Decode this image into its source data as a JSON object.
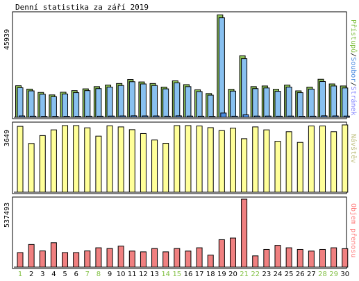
{
  "page": {
    "title": "Denní statistika za září 2019"
  },
  "panels": {
    "top": {
      "ymax_label": "45939",
      "legend_parts": [
        "Přístupů",
        "/",
        "Soubor",
        "/",
        "Stránek"
      ]
    },
    "middle": {
      "ymax_label": "3649",
      "legend": "Návštěv"
    },
    "bottom": {
      "ymax_label": "537493",
      "legend": "Objem přenosu"
    }
  },
  "colors": {
    "hits": "#8cbf59",
    "files": "#88c0f0",
    "pages": "#4a8be0",
    "visits": "#ffff99",
    "kbytes": "#f08080",
    "weekend_label": "#7fbf3f",
    "weekday_label": "#000000",
    "legend_hits": "#7fbf3f",
    "legend_files": "#4a8be0",
    "legend_pages": "#8888ff",
    "legend_sep": "#000000",
    "legend_visits": "#bfbf7f",
    "legend_kbytes": "#ff8080"
  },
  "chart_data": [
    {
      "type": "bar",
      "name": "hits-files-pages",
      "categories": [
        "1",
        "2",
        "3",
        "4",
        "5",
        "6",
        "7",
        "8",
        "9",
        "10",
        "11",
        "12",
        "13",
        "14",
        "15",
        "16",
        "17",
        "18",
        "19",
        "20",
        "21",
        "22",
        "23",
        "24",
        "25",
        "26",
        "27",
        "28",
        "29",
        "30"
      ],
      "weekend": [
        "1",
        "7",
        "8",
        "14",
        "15",
        "21",
        "22",
        "28",
        "29"
      ],
      "ylim": [
        0,
        45939
      ],
      "series": [
        {
          "name": "Přístupů",
          "values": [
            14100,
            12600,
            11100,
            10000,
            11200,
            11900,
            12700,
            13700,
            14400,
            15100,
            16900,
            15800,
            15100,
            13500,
            16300,
            14600,
            12300,
            10600,
            45800,
            12500,
            27500,
            13700,
            14000,
            12500,
            14400,
            11800,
            13500,
            17000,
            14900,
            14000
          ]
        },
        {
          "name": "Soubor",
          "values": [
            13200,
            11800,
            10300,
            9200,
            10400,
            11000,
            11900,
            12800,
            13500,
            14200,
            15900,
            14900,
            14200,
            12700,
            15400,
            13700,
            11500,
            9900,
            44500,
            11700,
            26200,
            12800,
            13100,
            11600,
            13500,
            11000,
            12600,
            16000,
            14000,
            13100
          ]
        },
        {
          "name": "Stránek",
          "values": [
            600,
            500,
            400,
            400,
            450,
            450,
            500,
            500,
            550,
            600,
            650,
            600,
            600,
            500,
            650,
            550,
            500,
            400,
            1900,
            500,
            1100,
            550,
            550,
            500,
            550,
            450,
            500,
            650,
            600,
            550
          ]
        }
      ]
    },
    {
      "type": "bar",
      "name": "visits",
      "categories": [
        "1",
        "2",
        "3",
        "4",
        "5",
        "6",
        "7",
        "8",
        "9",
        "10",
        "11",
        "12",
        "13",
        "14",
        "15",
        "16",
        "17",
        "18",
        "19",
        "20",
        "21",
        "22",
        "23",
        "24",
        "25",
        "26",
        "27",
        "28",
        "29",
        "30"
      ],
      "ylim": [
        0,
        3649
      ],
      "series": [
        {
          "name": "Návštěv",
          "values": [
            3570,
            2640,
            3070,
            3380,
            3610,
            3610,
            3490,
            3040,
            3600,
            3540,
            3390,
            3180,
            2830,
            2650,
            3610,
            3610,
            3590,
            3500,
            3340,
            3470,
            2900,
            3540,
            3380,
            2760,
            3280,
            2700,
            3590,
            3590,
            3280,
            3649
          ]
        }
      ]
    },
    {
      "type": "bar",
      "name": "kbytes",
      "categories": [
        "1",
        "2",
        "3",
        "4",
        "5",
        "6",
        "7",
        "8",
        "9",
        "10",
        "11",
        "12",
        "13",
        "14",
        "15",
        "16",
        "17",
        "18",
        "19",
        "20",
        "21",
        "22",
        "23",
        "24",
        "25",
        "26",
        "27",
        "28",
        "29",
        "30"
      ],
      "ylim": [
        0,
        537493
      ],
      "series": [
        {
          "name": "Objem přenosu",
          "values": [
            115000,
            179000,
            128000,
            193000,
            115000,
            115000,
            128000,
            153000,
            147000,
            166000,
            127000,
            121000,
            147000,
            121000,
            147000,
            127000,
            153000,
            95000,
            217000,
            230000,
            537493,
            89000,
            140000,
            172000,
            153000,
            140000,
            127000,
            140000,
            153000,
            146000
          ]
        }
      ]
    }
  ]
}
